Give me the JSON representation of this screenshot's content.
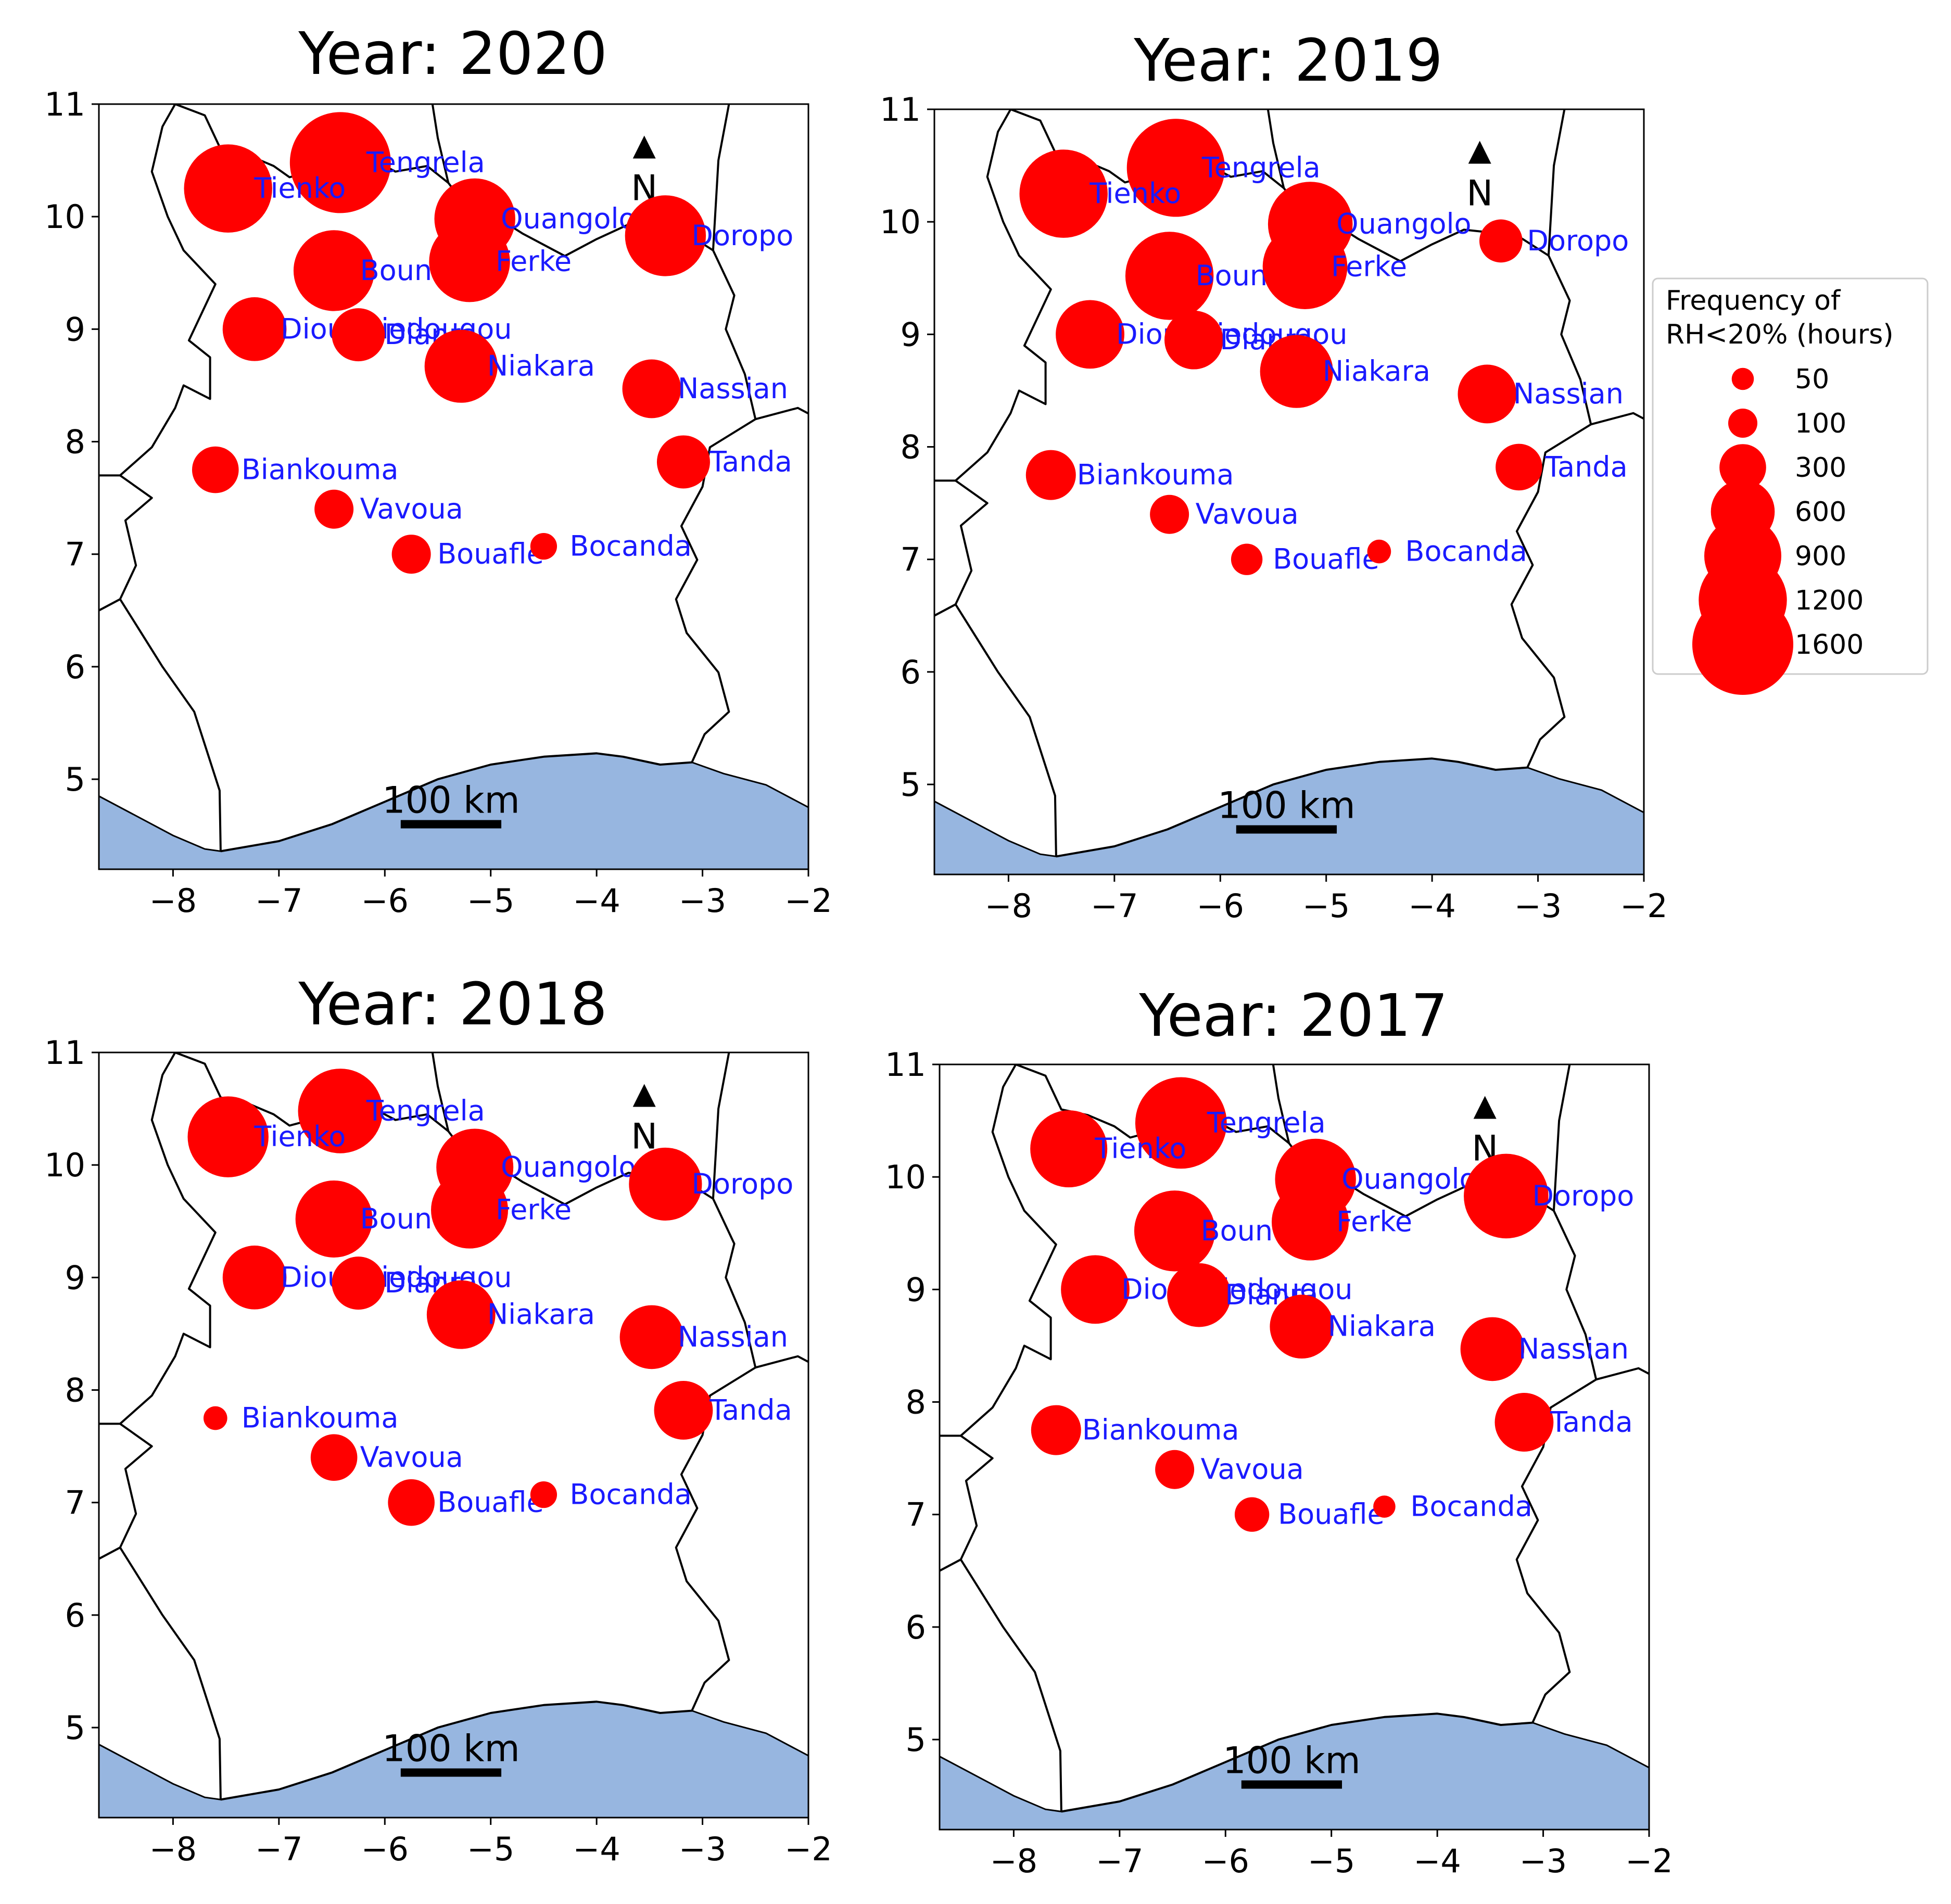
{
  "chart_data": [
    {
      "type": "scatter",
      "title": "Year: 2020",
      "xlim": [
        -8.7,
        -2.0
      ],
      "ylim": [
        4.2,
        11.0
      ],
      "xticks": [
        -8,
        -7,
        -6,
        -5,
        -4,
        -3,
        -2
      ],
      "yticks": [
        5,
        6,
        7,
        8,
        9,
        10,
        11
      ],
      "scale_bar": "100 km",
      "north_label": "N",
      "points": [
        {
          "name": "Tengrela",
          "lon": -6.42,
          "lat": 10.48,
          "value": 1600
        },
        {
          "name": "Tienko",
          "lon": -7.48,
          "lat": 10.25,
          "value": 1200
        },
        {
          "name": "Ouangolo",
          "lon": -5.15,
          "lat": 9.98,
          "value": 1000
        },
        {
          "name": "Doropo",
          "lon": -3.35,
          "lat": 9.83,
          "value": 1000
        },
        {
          "name": "Boundiali",
          "lon": -6.48,
          "lat": 9.52,
          "value": 1000
        },
        {
          "name": "Ferke",
          "lon": -5.2,
          "lat": 9.6,
          "value": 1000
        },
        {
          "name": "Dioulatiedougou",
          "lon": -7.23,
          "lat": 9.0,
          "value": 600
        },
        {
          "name": "Dianra",
          "lon": -6.25,
          "lat": 8.95,
          "value": 400
        },
        {
          "name": "Niakara",
          "lon": -5.28,
          "lat": 8.67,
          "value": 800
        },
        {
          "name": "Nassian",
          "lon": -3.48,
          "lat": 8.47,
          "value": 500
        },
        {
          "name": "Tanda",
          "lon": -3.18,
          "lat": 7.82,
          "value": 400
        },
        {
          "name": "Biankouma",
          "lon": -7.6,
          "lat": 7.75,
          "value": 300
        },
        {
          "name": "Vavoua",
          "lon": -6.48,
          "lat": 7.4,
          "value": 200
        },
        {
          "name": "Bouafle",
          "lon": -5.75,
          "lat": 7.0,
          "value": 200
        },
        {
          "name": "Bocanda",
          "lon": -4.5,
          "lat": 7.07,
          "value": 80
        }
      ]
    },
    {
      "type": "scatter",
      "title": "Year: 2019",
      "xlim": [
        -8.7,
        -2.0
      ],
      "ylim": [
        4.2,
        11.0
      ],
      "xticks": [
        -8,
        -7,
        -6,
        -5,
        -4,
        -3,
        -2
      ],
      "yticks": [
        5,
        6,
        7,
        8,
        9,
        10,
        11
      ],
      "scale_bar": "100 km",
      "north_label": "N",
      "points": [
        {
          "name": "Tengrela",
          "lon": -6.42,
          "lat": 10.48,
          "value": 1500
        },
        {
          "name": "Tienko",
          "lon": -7.48,
          "lat": 10.25,
          "value": 1200
        },
        {
          "name": "Ouangolo",
          "lon": -5.15,
          "lat": 9.98,
          "value": 1100
        },
        {
          "name": "Doropo",
          "lon": -3.35,
          "lat": 9.83,
          "value": 250
        },
        {
          "name": "Boundiali",
          "lon": -6.48,
          "lat": 9.52,
          "value": 1200
        },
        {
          "name": "Ferke",
          "lon": -5.2,
          "lat": 9.6,
          "value": 1100
        },
        {
          "name": "Dioulatiedougou",
          "lon": -7.23,
          "lat": 9.0,
          "value": 700
        },
        {
          "name": "Dianra",
          "lon": -6.25,
          "lat": 8.95,
          "value": 500
        },
        {
          "name": "Niakara",
          "lon": -5.28,
          "lat": 8.67,
          "value": 800
        },
        {
          "name": "Nassian",
          "lon": -3.48,
          "lat": 8.47,
          "value": 500
        },
        {
          "name": "Tanda",
          "lon": -3.18,
          "lat": 7.82,
          "value": 300
        },
        {
          "name": "Biankouma",
          "lon": -7.6,
          "lat": 7.75,
          "value": 350
        },
        {
          "name": "Vavoua",
          "lon": -6.48,
          "lat": 7.4,
          "value": 200
        },
        {
          "name": "Bouafle",
          "lon": -5.75,
          "lat": 7.0,
          "value": 120
        },
        {
          "name": "Bocanda",
          "lon": -4.5,
          "lat": 7.07,
          "value": 60
        }
      ]
    },
    {
      "type": "scatter",
      "title": "Year: 2018",
      "xlim": [
        -8.7,
        -2.0
      ],
      "ylim": [
        4.2,
        11.0
      ],
      "xticks": [
        -8,
        -7,
        -6,
        -5,
        -4,
        -3,
        -2
      ],
      "yticks": [
        5,
        6,
        7,
        8,
        9,
        10,
        11
      ],
      "scale_bar": "100 km",
      "north_label": "N",
      "points": [
        {
          "name": "Tengrela",
          "lon": -6.42,
          "lat": 10.48,
          "value": 1100
        },
        {
          "name": "Tienko",
          "lon": -7.48,
          "lat": 10.25,
          "value": 1000
        },
        {
          "name": "Ouangolo",
          "lon": -5.15,
          "lat": 9.98,
          "value": 900
        },
        {
          "name": "Doropo",
          "lon": -3.35,
          "lat": 9.83,
          "value": 800
        },
        {
          "name": "Boundiali",
          "lon": -6.48,
          "lat": 9.52,
          "value": 900
        },
        {
          "name": "Ferke",
          "lon": -5.2,
          "lat": 9.6,
          "value": 900
        },
        {
          "name": "Dioulatiedougou",
          "lon": -7.23,
          "lat": 9.0,
          "value": 600
        },
        {
          "name": "Dianra",
          "lon": -6.25,
          "lat": 8.95,
          "value": 400
        },
        {
          "name": "Niakara",
          "lon": -5.28,
          "lat": 8.67,
          "value": 700
        },
        {
          "name": "Nassian",
          "lon": -3.48,
          "lat": 8.47,
          "value": 600
        },
        {
          "name": "Tanda",
          "lon": -3.18,
          "lat": 7.82,
          "value": 500
        },
        {
          "name": "Biankouma",
          "lon": -7.6,
          "lat": 7.75,
          "value": 60
        },
        {
          "name": "Vavoua",
          "lon": -6.48,
          "lat": 7.4,
          "value": 300
        },
        {
          "name": "Bouafle",
          "lon": -5.75,
          "lat": 7.0,
          "value": 300
        },
        {
          "name": "Bocanda",
          "lon": -4.5,
          "lat": 7.07,
          "value": 80
        }
      ]
    },
    {
      "type": "scatter",
      "title": "Year: 2017",
      "xlim": [
        -8.7,
        -2.0
      ],
      "ylim": [
        4.2,
        11.0
      ],
      "xticks": [
        -8,
        -7,
        -6,
        -5,
        -4,
        -3,
        -2
      ],
      "yticks": [
        5,
        6,
        7,
        8,
        9,
        10,
        11
      ],
      "scale_bar": "100 km",
      "north_label": "N",
      "points": [
        {
          "name": "Tengrela",
          "lon": -6.42,
          "lat": 10.48,
          "value": 1300
        },
        {
          "name": "Tienko",
          "lon": -7.48,
          "lat": 10.25,
          "value": 900
        },
        {
          "name": "Ouangolo",
          "lon": -5.15,
          "lat": 9.98,
          "value": 1000
        },
        {
          "name": "Doropo",
          "lon": -3.35,
          "lat": 9.83,
          "value": 1100
        },
        {
          "name": "Boundiali",
          "lon": -6.48,
          "lat": 9.52,
          "value": 1000
        },
        {
          "name": "Ferke",
          "lon": -5.2,
          "lat": 9.6,
          "value": 900
        },
        {
          "name": "Dioulatiedougou",
          "lon": -7.23,
          "lat": 9.0,
          "value": 700
        },
        {
          "name": "Dianra",
          "lon": -6.25,
          "lat": 8.95,
          "value": 600
        },
        {
          "name": "Niakara",
          "lon": -5.28,
          "lat": 8.67,
          "value": 600
        },
        {
          "name": "Nassian",
          "lon": -3.48,
          "lat": 8.47,
          "value": 600
        },
        {
          "name": "Tanda",
          "lon": -3.18,
          "lat": 7.82,
          "value": 500
        },
        {
          "name": "Biankouma",
          "lon": -7.6,
          "lat": 7.75,
          "value": 350
        },
        {
          "name": "Vavoua",
          "lon": -6.48,
          "lat": 7.4,
          "value": 200
        },
        {
          "name": "Bouafle",
          "lon": -5.75,
          "lat": 7.0,
          "value": 150
        },
        {
          "name": "Bocanda",
          "lon": -4.5,
          "lat": 7.07,
          "value": 50
        }
      ]
    }
  ],
  "legend": {
    "title_line1": "Frequency of",
    "title_line2": "RH<20% (hours)",
    "entries": [
      50,
      100,
      300,
      600,
      900,
      1200,
      1600
    ]
  },
  "colors": {
    "point": "#ff0000",
    "city_label": "#1a1aff",
    "ocean": "#97b6e0",
    "border": "#000000"
  }
}
